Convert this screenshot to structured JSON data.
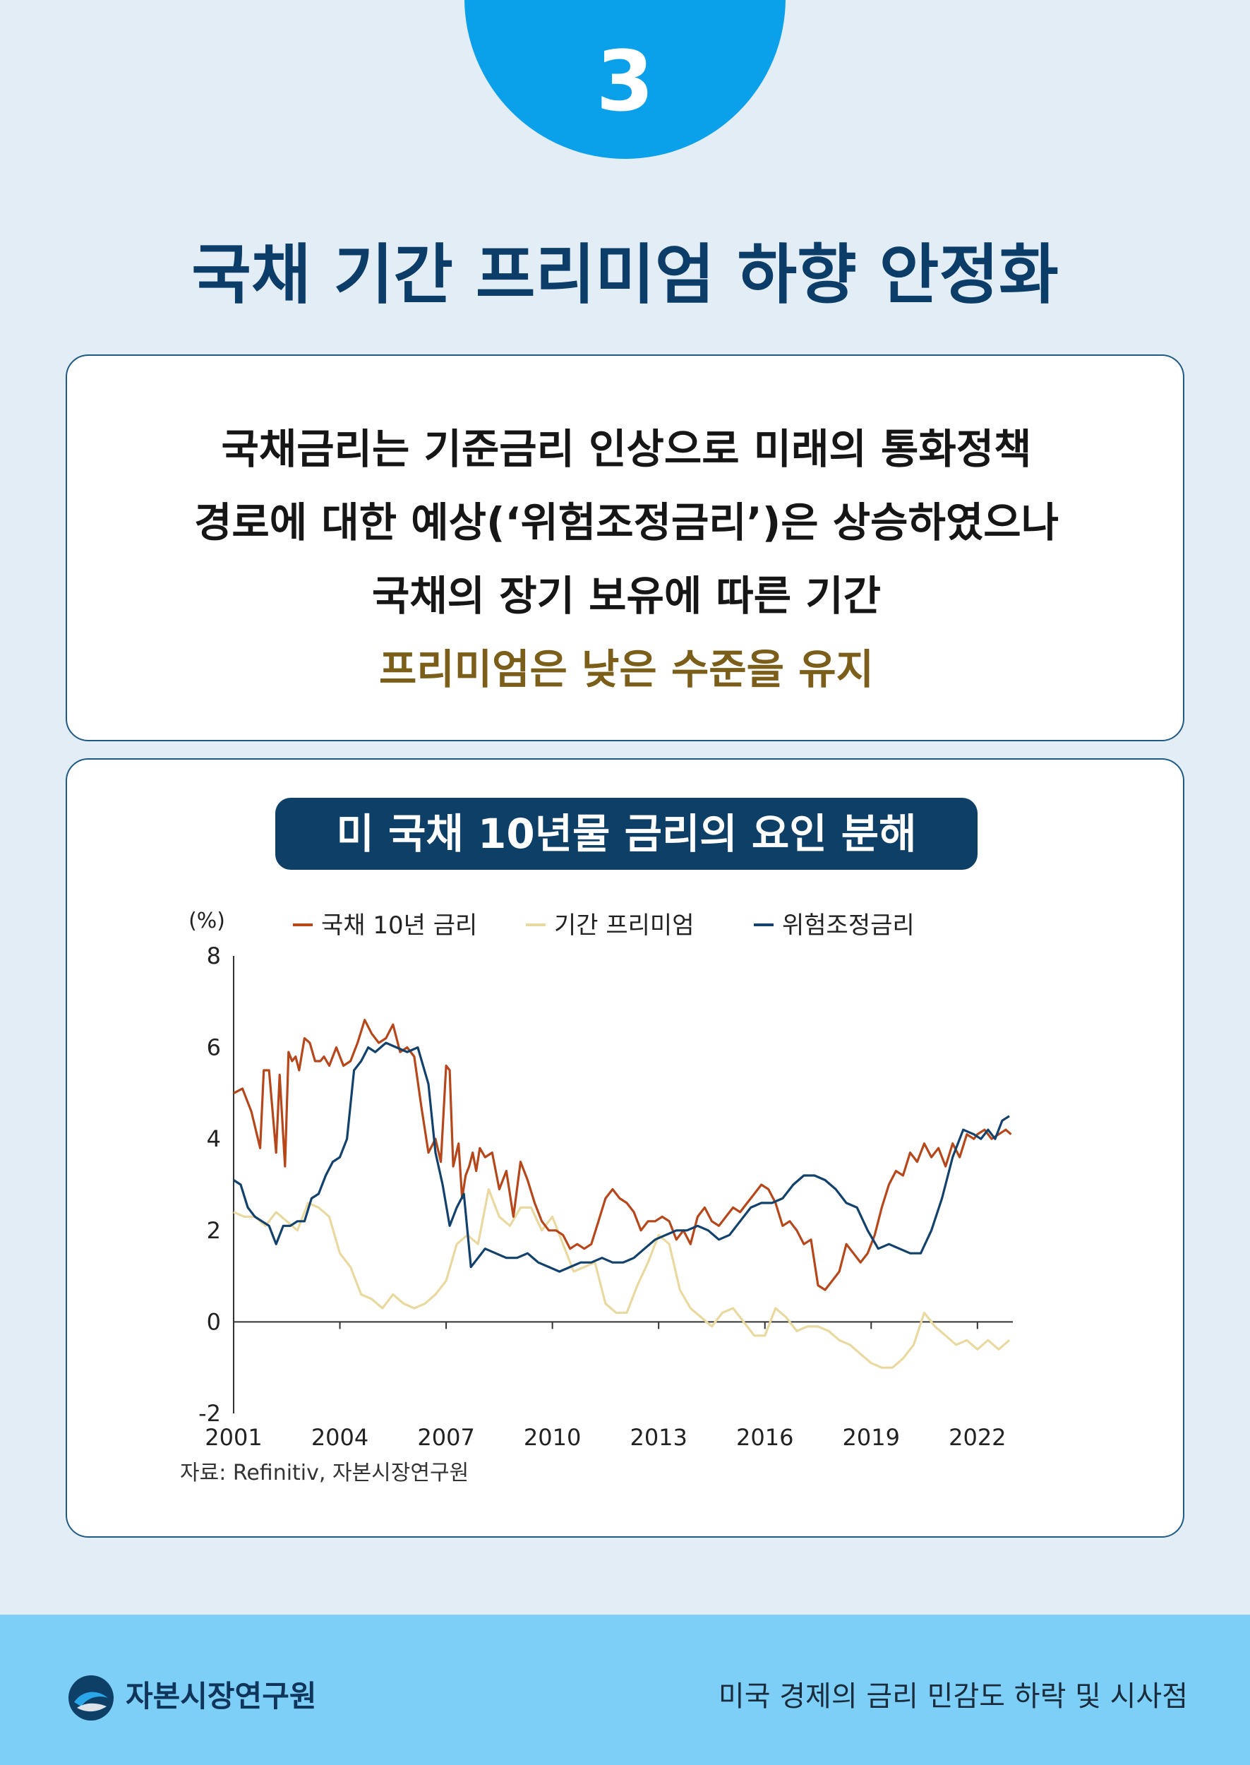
{
  "badge_number": "3",
  "title": "국채 기간 프리미엄 하향 안정화",
  "description": {
    "lines": [
      "국채금리는 기준금리 인상으로 미래의 통화정책",
      "경로에 대한 예상(‘위험조정금리’)은 상승하였으나",
      "국채의 장기 보유에 따른 기간"
    ],
    "highlight": "프리미엄은 낮은 수준을 유지",
    "highlight_color": "#7a5e1a"
  },
  "chart_title": "미 국채 10년물 금리의 요인 분해",
  "source": "자료: Refinitiv, 자본시장연구원",
  "chart_data": {
    "type": "line",
    "y_unit_label": "(%)",
    "ylim": [
      -2,
      8
    ],
    "y_ticks": [
      "8",
      "6",
      "4",
      "2",
      "0",
      "-2"
    ],
    "y_tick_values": [
      8,
      6,
      4,
      2,
      0,
      -2
    ],
    "xlim": [
      2001.0,
      2023.0
    ],
    "x_ticks": [
      "2001",
      "2004",
      "2007",
      "2010",
      "2013",
      "2016",
      "2019",
      "2022"
    ],
    "x_tick_values": [
      2001,
      2004,
      2007,
      2010,
      2013,
      2016,
      2019,
      2022
    ],
    "legend": {
      "position": "top"
    },
    "series": [
      {
        "name": "국채 10년 금리",
        "color": "#b5471b",
        "x": [
          2001.0,
          2001.25,
          2001.5,
          2001.75,
          2001.85,
          2002.0,
          2002.2,
          2002.3,
          2002.45,
          2002.55,
          2002.65,
          2002.75,
          2002.85,
          2003.0,
          2003.15,
          2003.3,
          2003.45,
          2003.55,
          2003.7,
          2003.9,
          2004.1,
          2004.3,
          2004.5,
          2004.7,
          2004.9,
          2005.1,
          2005.3,
          2005.5,
          2005.7,
          2005.9,
          2006.1,
          2006.3,
          2006.5,
          2006.7,
          2006.85,
          2007.0,
          2007.1,
          2007.2,
          2007.35,
          2007.45,
          2007.55,
          2007.65,
          2007.75,
          2007.85,
          2007.95,
          2008.1,
          2008.3,
          2008.5,
          2008.7,
          2008.9,
          2009.1,
          2009.3,
          2009.5,
          2009.7,
          2009.9,
          2010.1,
          2010.3,
          2010.5,
          2010.7,
          2010.9,
          2011.1,
          2011.3,
          2011.5,
          2011.7,
          2011.9,
          2012.1,
          2012.3,
          2012.5,
          2012.7,
          2012.9,
          2013.1,
          2013.3,
          2013.5,
          2013.7,
          2013.9,
          2014.1,
          2014.3,
          2014.5,
          2014.7,
          2014.9,
          2015.1,
          2015.3,
          2015.5,
          2015.7,
          2015.9,
          2016.1,
          2016.3,
          2016.5,
          2016.7,
          2016.9,
          2017.1,
          2017.3,
          2017.5,
          2017.7,
          2017.9,
          2018.1,
          2018.3,
          2018.5,
          2018.7,
          2018.9,
          2019.1,
          2019.3,
          2019.5,
          2019.7,
          2019.9,
          2020.1,
          2020.3,
          2020.5,
          2020.7,
          2020.9,
          2021.1,
          2021.3,
          2021.5,
          2021.7,
          2021.9,
          2022.0,
          2022.2,
          2022.4,
          2022.6,
          2022.8,
          2022.95
        ],
        "values": [
          5.0,
          5.1,
          4.6,
          3.8,
          5.5,
          5.5,
          3.7,
          5.4,
          3.4,
          5.9,
          5.7,
          5.8,
          5.5,
          6.2,
          6.1,
          5.7,
          5.7,
          5.8,
          5.6,
          6.0,
          5.6,
          5.7,
          6.1,
          6.6,
          6.3,
          6.1,
          6.2,
          6.5,
          5.9,
          6.0,
          5.8,
          4.7,
          3.7,
          4.0,
          3.5,
          5.6,
          5.5,
          3.4,
          3.9,
          2.7,
          3.2,
          3.4,
          3.7,
          3.3,
          3.8,
          3.6,
          3.7,
          2.9,
          3.3,
          2.3,
          3.5,
          3.1,
          2.6,
          2.2,
          2.0,
          2.0,
          1.9,
          1.6,
          1.7,
          1.6,
          1.7,
          2.2,
          2.7,
          2.9,
          2.7,
          2.6,
          2.4,
          2.0,
          2.2,
          2.2,
          2.3,
          2.2,
          1.8,
          2.0,
          1.7,
          2.3,
          2.5,
          2.2,
          2.1,
          2.3,
          2.5,
          2.4,
          2.6,
          2.8,
          3.0,
          2.9,
          2.6,
          2.1,
          2.2,
          2.0,
          1.7,
          1.8,
          0.8,
          0.7,
          0.9,
          1.1,
          1.7,
          1.5,
          1.3,
          1.5,
          1.9,
          2.5,
          3.0,
          3.3,
          3.2,
          3.7,
          3.5,
          3.9,
          3.6,
          3.8,
          3.4,
          3.9,
          3.6,
          4.1,
          4.0,
          4.1,
          4.2,
          4.0,
          4.1,
          4.2,
          4.1
        ],
        "_note_len": "x and values paired"
      },
      {
        "name": "기간 프리미엄",
        "color": "#e9d9a0",
        "x": [
          2001.0,
          2001.3,
          2001.6,
          2001.9,
          2002.2,
          2002.5,
          2002.8,
          2003.1,
          2003.4,
          2003.7,
          2004.0,
          2004.3,
          2004.6,
          2004.9,
          2005.2,
          2005.5,
          2005.8,
          2006.1,
          2006.4,
          2006.7,
          2007.0,
          2007.3,
          2007.6,
          2007.9,
          2008.2,
          2008.5,
          2008.8,
          2009.1,
          2009.4,
          2009.7,
          2010.0,
          2010.3,
          2010.6,
          2010.9,
          2011.2,
          2011.5,
          2011.8,
          2012.1,
          2012.4,
          2012.7,
          2013.0,
          2013.3,
          2013.6,
          2013.9,
          2014.2,
          2014.5,
          2014.8,
          2015.1,
          2015.4,
          2015.7,
          2016.0,
          2016.3,
          2016.6,
          2016.9,
          2017.2,
          2017.5,
          2017.8,
          2018.1,
          2018.4,
          2018.7,
          2019.0,
          2019.3,
          2019.6,
          2019.9,
          2020.2,
          2020.5,
          2020.8,
          2021.1,
          2021.4,
          2021.7,
          2022.0,
          2022.3,
          2022.6,
          2022.9
        ],
        "values": [
          2.4,
          2.3,
          2.3,
          2.1,
          2.4,
          2.2,
          2.0,
          2.6,
          2.5,
          2.3,
          1.5,
          1.2,
          0.6,
          0.5,
          0.3,
          0.6,
          0.4,
          0.3,
          0.4,
          0.6,
          0.9,
          1.7,
          1.9,
          1.7,
          2.9,
          2.3,
          2.1,
          2.5,
          2.5,
          2.0,
          2.3,
          1.7,
          1.1,
          1.2,
          1.3,
          0.4,
          0.2,
          0.2,
          0.8,
          1.3,
          1.9,
          1.7,
          0.7,
          0.3,
          0.1,
          -0.1,
          0.2,
          0.3,
          0.0,
          -0.3,
          -0.3,
          0.3,
          0.1,
          -0.2,
          -0.1,
          -0.1,
          -0.2,
          -0.4,
          -0.5,
          -0.7,
          -0.9,
          -1.0,
          -1.0,
          -0.8,
          -0.5,
          0.2,
          -0.1,
          -0.3,
          -0.5,
          -0.4,
          -0.6,
          -0.4,
          -0.6,
          -0.4
        ]
      },
      {
        "name": "위험조정금리",
        "color": "#12416b",
        "x": [
          2001.0,
          2001.2,
          2001.4,
          2001.6,
          2001.8,
          2002.0,
          2002.2,
          2002.4,
          2002.6,
          2002.8,
          2003.0,
          2003.2,
          2003.4,
          2003.6,
          2003.8,
          2004.0,
          2004.2,
          2004.4,
          2004.6,
          2004.8,
          2005.0,
          2005.3,
          2005.6,
          2005.9,
          2006.2,
          2006.5,
          2006.7,
          2006.9,
          2007.1,
          2007.3,
          2007.5,
          2007.7,
          2007.9,
          2008.1,
          2008.4,
          2008.7,
          2009.0,
          2009.3,
          2009.6,
          2009.9,
          2010.2,
          2010.5,
          2010.8,
          2011.1,
          2011.4,
          2011.7,
          2012.0,
          2012.3,
          2012.6,
          2012.9,
          2013.2,
          2013.5,
          2013.8,
          2014.1,
          2014.4,
          2014.7,
          2015.0,
          2015.3,
          2015.6,
          2015.9,
          2016.2,
          2016.5,
          2016.8,
          2017.1,
          2017.4,
          2017.7,
          2018.0,
          2018.3,
          2018.6,
          2018.9,
          2019.2,
          2019.5,
          2019.8,
          2020.1,
          2020.4,
          2020.7,
          2021.0,
          2021.3,
          2021.6,
          2021.9,
          2022.1,
          2022.3,
          2022.5,
          2022.7,
          2022.9
        ],
        "values": [
          3.1,
          3.0,
          2.5,
          2.3,
          2.2,
          2.1,
          1.7,
          2.1,
          2.1,
          2.2,
          2.2,
          2.7,
          2.8,
          3.2,
          3.5,
          3.6,
          4.0,
          5.5,
          5.7,
          6.0,
          5.9,
          6.1,
          6.0,
          5.9,
          6.0,
          5.2,
          3.7,
          3.0,
          2.1,
          2.5,
          2.8,
          1.2,
          1.4,
          1.6,
          1.5,
          1.4,
          1.4,
          1.5,
          1.3,
          1.2,
          1.1,
          1.2,
          1.3,
          1.3,
          1.4,
          1.3,
          1.3,
          1.4,
          1.6,
          1.8,
          1.9,
          2.0,
          2.0,
          2.1,
          2.0,
          1.8,
          1.9,
          2.2,
          2.5,
          2.6,
          2.6,
          2.7,
          3.0,
          3.2,
          3.2,
          3.1,
          2.9,
          2.6,
          2.5,
          2.0,
          1.6,
          1.7,
          1.6,
          1.5,
          1.5,
          2.0,
          2.7,
          3.6,
          4.2,
          4.1,
          4.0,
          4.2,
          4.0,
          4.4,
          4.5
        ]
      }
    ]
  },
  "footer": {
    "org_name": "자본시장연구원",
    "report_title": "미국 경제의 금리 민감도 하락 및 시사점"
  }
}
